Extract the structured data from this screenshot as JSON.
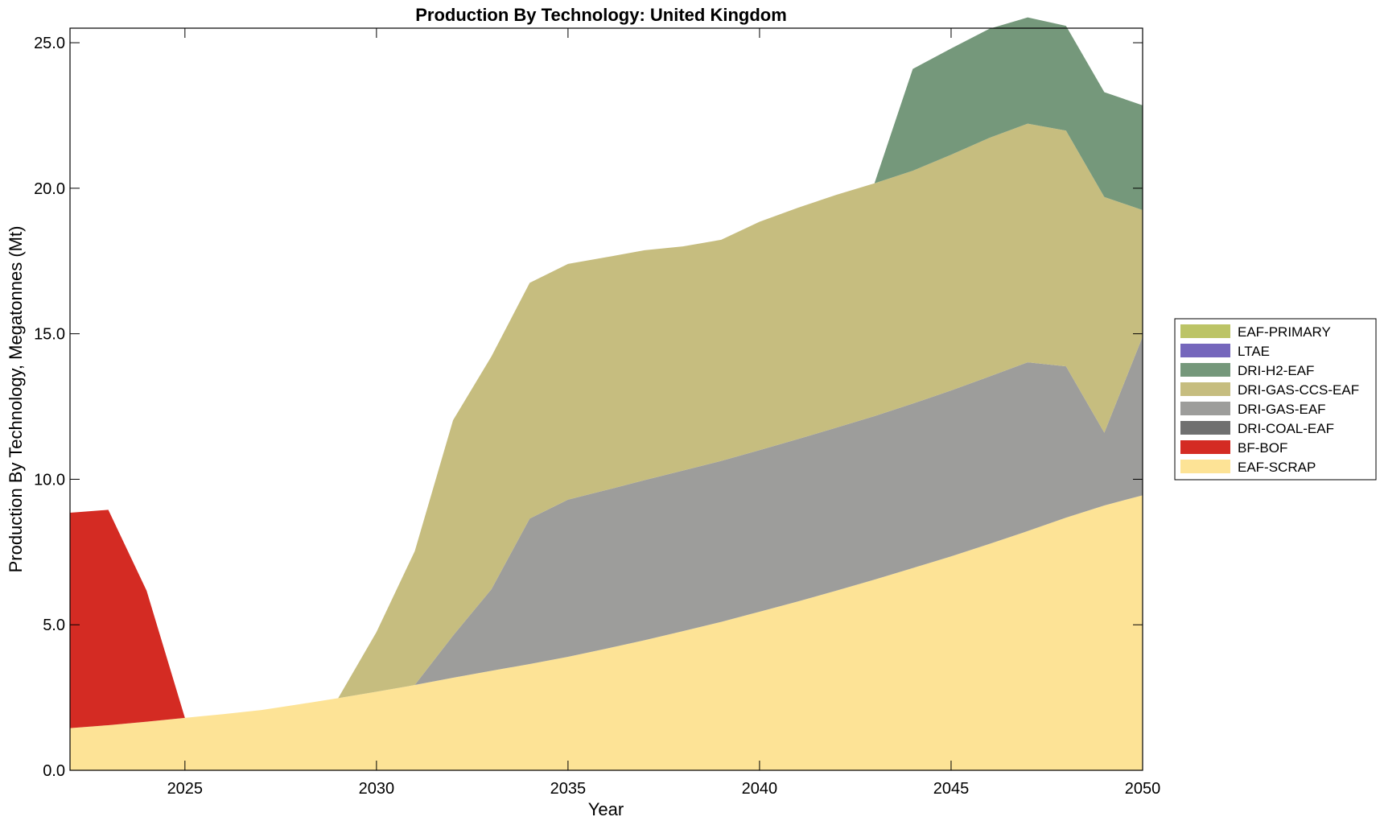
{
  "chart_data": {
    "type": "area",
    "stacked": true,
    "title": "Production By Technology: United Kingdom",
    "xlabel": "Year",
    "ylabel": "Production By Technology, Megatonnes (Mt)",
    "xlim": [
      2022,
      2050
    ],
    "ylim": [
      0,
      25.5
    ],
    "x_ticks": [
      2025,
      2030,
      2035,
      2040,
      2045,
      2050
    ],
    "x_tick_labels": [
      "2025",
      "2030",
      "2035",
      "2040",
      "2045",
      "2050"
    ],
    "y_ticks": [
      0,
      5,
      10,
      15,
      20,
      25
    ],
    "y_tick_labels": [
      "0.0",
      "5.0",
      "10.0",
      "15.0",
      "20.0",
      "25.0"
    ],
    "legend_position": "right",
    "x": [
      2022,
      2023,
      2024,
      2025,
      2026,
      2027,
      2028,
      2029,
      2030,
      2031,
      2032,
      2033,
      2034,
      2035,
      2036,
      2037,
      2038,
      2039,
      2040,
      2041,
      2042,
      2043,
      2044,
      2045,
      2046,
      2047,
      2048,
      2049,
      2050
    ],
    "series": [
      {
        "name": "EAF-SCRAP",
        "color": "#fde396",
        "values": [
          1.45,
          1.55,
          1.67,
          1.8,
          1.93,
          2.07,
          2.27,
          2.48,
          2.7,
          2.93,
          3.18,
          3.42,
          3.65,
          3.9,
          4.18,
          4.47,
          4.78,
          5.1,
          5.45,
          5.8,
          6.17,
          6.55,
          6.95,
          7.35,
          7.78,
          8.22,
          8.68,
          9.1,
          9.45
        ]
      },
      {
        "name": "BF-BOF",
        "color": "#d42b23",
        "values": [
          7.4,
          7.4,
          4.5,
          0,
          0,
          0,
          0,
          0,
          0,
          0,
          0,
          0,
          0,
          0,
          0,
          0,
          0,
          0,
          0,
          0,
          0,
          0,
          0,
          0,
          0,
          0,
          0,
          0,
          0
        ]
      },
      {
        "name": "DRI-COAL-EAF",
        "color": "#707070",
        "values": [
          0,
          0,
          0,
          0,
          0,
          0,
          0,
          0,
          0,
          0,
          0,
          0,
          0,
          0,
          0,
          0,
          0,
          0,
          0,
          0,
          0,
          0,
          0,
          0,
          0,
          0,
          0,
          0,
          0
        ]
      },
      {
        "name": "DRI-GAS-EAF",
        "color": "#9d9d9b",
        "values": [
          0,
          0,
          0,
          0,
          0,
          0,
          0,
          0,
          0,
          0,
          1.45,
          2.8,
          5.0,
          5.4,
          5.45,
          5.5,
          5.52,
          5.53,
          5.55,
          5.58,
          5.6,
          5.62,
          5.65,
          5.7,
          5.75,
          5.8,
          5.2,
          2.5,
          5.45
        ]
      },
      {
        "name": "DRI-GAS-CCS-EAF",
        "color": "#c6bd7f",
        "values": [
          0,
          0,
          0,
          0,
          0,
          0,
          0,
          0,
          2.05,
          4.6,
          7.4,
          8.0,
          8.1,
          8.1,
          8.0,
          7.9,
          7.7,
          7.6,
          7.85,
          7.95,
          8.0,
          8.0,
          8.0,
          8.1,
          8.2,
          8.2,
          8.1,
          8.1,
          4.35
        ]
      },
      {
        "name": "DRI-H2-EAF",
        "color": "#75987b",
        "values": [
          0,
          0,
          0,
          0,
          0,
          0,
          0,
          0,
          0,
          0,
          0,
          0,
          0,
          0,
          0,
          0,
          0,
          0,
          0,
          0,
          0,
          0,
          3.5,
          3.65,
          3.75,
          3.65,
          3.6,
          3.6,
          3.6
        ]
      },
      {
        "name": "LTAE",
        "color": "#7567bc",
        "values": [
          0,
          0,
          0,
          0,
          0,
          0,
          0,
          0,
          0,
          0,
          0,
          0,
          0,
          0,
          0,
          0,
          0,
          0,
          0,
          0,
          0,
          0,
          0,
          0,
          0,
          0,
          0,
          0,
          0
        ]
      },
      {
        "name": "EAF-PRIMARY",
        "color": "#bcc466",
        "values": [
          0,
          0,
          0,
          0,
          0,
          0,
          0,
          0,
          0,
          0,
          0,
          0,
          0,
          0,
          0,
          0,
          0,
          0,
          0,
          0,
          0,
          0,
          0,
          0,
          0,
          0,
          0,
          0,
          0
        ]
      }
    ],
    "legend": [
      {
        "name": "EAF-PRIMARY",
        "color": "#bcc466"
      },
      {
        "name": "LTAE",
        "color": "#7567bc"
      },
      {
        "name": "DRI-H2-EAF",
        "color": "#75987b"
      },
      {
        "name": "DRI-GAS-CCS-EAF",
        "color": "#c6bd7f"
      },
      {
        "name": "DRI-GAS-EAF",
        "color": "#9d9d9b"
      },
      {
        "name": "DRI-COAL-EAF",
        "color": "#707070"
      },
      {
        "name": "BF-BOF",
        "color": "#d42b23"
      },
      {
        "name": "EAF-SCRAP",
        "color": "#fde396"
      }
    ]
  }
}
